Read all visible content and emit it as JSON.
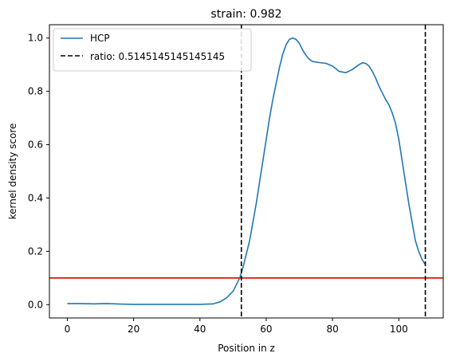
{
  "chart_data": {
    "type": "line",
    "title": "strain: 0.982",
    "xlabel": "Position in z",
    "ylabel": "kernel density score",
    "xlim": [
      -5.4,
      113.4
    ],
    "ylim": [
      -0.05,
      1.05
    ],
    "xticks": [
      0,
      20,
      40,
      60,
      80,
      100
    ],
    "yticks": [
      0.0,
      0.2,
      0.4,
      0.6,
      0.8,
      1.0
    ],
    "grid": false,
    "legend_position": "upper-left",
    "series": [
      {
        "name": "HCP",
        "color": "#1f77b4",
        "style": "solid",
        "x": [
          0,
          4,
          8,
          12,
          16,
          20,
          25,
          30,
          35,
          40,
          44,
          46,
          48,
          50,
          52,
          53,
          54,
          55,
          56,
          57,
          58,
          59,
          60,
          61,
          62,
          63,
          64,
          65,
          66,
          67,
          68,
          69,
          70,
          71,
          72,
          73,
          74,
          76,
          78,
          80,
          82,
          84,
          86,
          88,
          89,
          90,
          91,
          92,
          93,
          94,
          95,
          96,
          97,
          98,
          99,
          100,
          101,
          102,
          103,
          104,
          105,
          106,
          107,
          108
        ],
        "y": [
          0.004,
          0.004,
          0.003,
          0.004,
          0.002,
          0.001,
          0.001,
          0.001,
          0.001,
          0.001,
          0.003,
          0.01,
          0.025,
          0.05,
          0.1,
          0.14,
          0.19,
          0.24,
          0.31,
          0.38,
          0.46,
          0.54,
          0.62,
          0.7,
          0.77,
          0.83,
          0.89,
          0.94,
          0.975,
          0.995,
          1.0,
          0.995,
          0.98,
          0.955,
          0.935,
          0.92,
          0.912,
          0.908,
          0.905,
          0.895,
          0.875,
          0.87,
          0.882,
          0.9,
          0.907,
          0.905,
          0.895,
          0.875,
          0.85,
          0.82,
          0.795,
          0.77,
          0.75,
          0.72,
          0.68,
          0.62,
          0.54,
          0.46,
          0.38,
          0.31,
          0.24,
          0.2,
          0.17,
          0.15
        ]
      }
    ],
    "vlines": [
      {
        "x": 52.5,
        "color": "#000000",
        "style": "dashed",
        "label": "ratio: 0.5145145145145145"
      },
      {
        "x": 108,
        "color": "#000000",
        "style": "dashed"
      }
    ],
    "hlines": [
      {
        "y": 0.1,
        "color": "#e00000",
        "style": "solid"
      }
    ],
    "legend": [
      {
        "label": "HCP",
        "color": "#1f77b4",
        "style": "solid"
      },
      {
        "label": "ratio: 0.5145145145145145",
        "color": "#000000",
        "style": "dashed"
      }
    ]
  }
}
